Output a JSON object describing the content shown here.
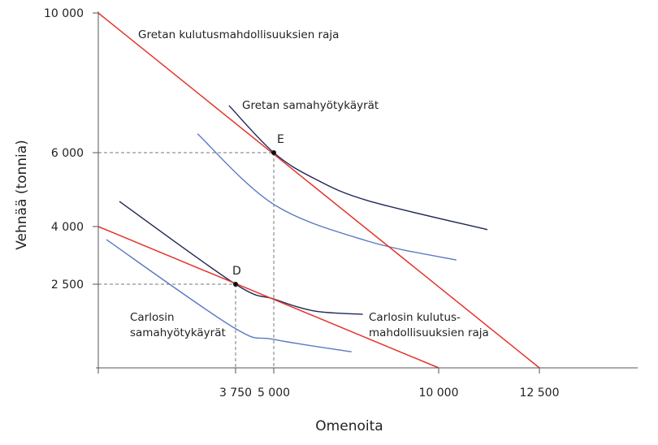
{
  "chart_data": {
    "type": "line",
    "title": "",
    "xlabel": "Omenoita",
    "ylabel": "Vehnää (tonnia)",
    "xlim": [
      0,
      16000
    ],
    "ylim": [
      0,
      10000
    ],
    "x_ticks": [
      {
        "value": 3750,
        "label": "3 750"
      },
      {
        "value": 5000,
        "label": "5 000"
      },
      {
        "value": 10000,
        "label": "10 000"
      },
      {
        "value": 12500,
        "label": "12 500"
      }
    ],
    "y_ticks": [
      {
        "value": 2500,
        "label": "2 500"
      },
      {
        "value": 4000,
        "label": "4 000"
      },
      {
        "value": 6000,
        "label": "6 000"
      },
      {
        "value": 10000,
        "label": "10 000"
      }
    ],
    "grid": false,
    "colors": {
      "budget": "#e3342a",
      "indiff_dark": "#1e2757",
      "indiff_light": "#5a78c4",
      "guide": "#777777"
    },
    "budget_lines": [
      {
        "name": "Gretan kulutusmahdollisuuksien raja",
        "points": [
          [
            0,
            10000
          ],
          [
            12500,
            0
          ]
        ]
      },
      {
        "name": "Carlosin kulutus-mahdollisuuksien raja",
        "points": [
          [
            0,
            4000
          ],
          [
            10000,
            0
          ]
        ]
      }
    ],
    "indifference_curves": [
      {
        "owner": "Greta",
        "tone": "dark",
        "points": [
          [
            3570,
            7350
          ],
          [
            5000,
            6000
          ],
          [
            6230,
            5300
          ],
          [
            7860,
            4700
          ],
          [
            11210,
            3920
          ]
        ]
      },
      {
        "owner": "Greta",
        "tone": "light",
        "points": [
          [
            2710,
            6540
          ],
          [
            5000,
            4600
          ],
          [
            7860,
            3620
          ],
          [
            10440,
            3130
          ]
        ]
      },
      {
        "owner": "Carlos",
        "tone": "dark",
        "points": [
          [
            577,
            4680
          ],
          [
            3750,
            2500
          ],
          [
            5000,
            2060
          ],
          [
            6230,
            1700
          ],
          [
            7700,
            1600
          ]
        ]
      },
      {
        "owner": "Carlos",
        "tone": "light",
        "points": [
          [
            222,
            3660
          ],
          [
            3690,
            1210
          ],
          [
            5000,
            850
          ],
          [
            7360,
            480
          ]
        ]
      }
    ],
    "points": [
      {
        "label": "E",
        "x": 5000,
        "y": 6000
      },
      {
        "label": "D",
        "x": 3750,
        "y": 2500
      }
    ],
    "annotations": {
      "greta_budget": "Gretan kulutusmahdollisuuksien raja",
      "greta_indiff": "Gretan samahyötykäyrät",
      "carlos_indiff_1": "Carlosin",
      "carlos_indiff_2": "samahyötykäyrät",
      "carlos_budget_1": "Carlosin kulutus-",
      "carlos_budget_2": "mahdollisuuksien raja"
    }
  }
}
